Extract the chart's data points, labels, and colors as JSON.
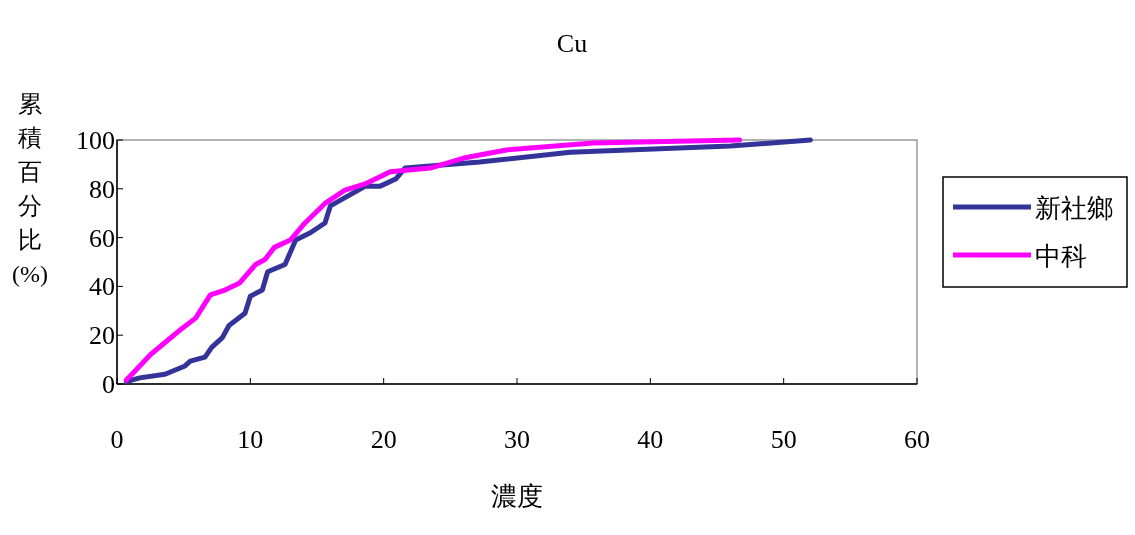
{
  "chart_data": {
    "type": "line",
    "title": "Cu",
    "xlabel": "濃度",
    "ylabel": "累積百分比(%)",
    "xlim": [
      0,
      60
    ],
    "ylim": [
      0,
      100
    ],
    "xticks": [
      0,
      10,
      20,
      30,
      40,
      50,
      60
    ],
    "yticks": [
      0,
      20,
      40,
      60,
      80,
      100
    ],
    "legend": "right",
    "grid": false,
    "series": [
      {
        "name": "新社鄉",
        "color": "#333399",
        "x": [
          0.7,
          1.7,
          3.6,
          5.1,
          5.5,
          6.6,
          7.1,
          7.9,
          8.4,
          9.6,
          10,
          10.9,
          11.3,
          12.6,
          13.4,
          14.5,
          15.6,
          16,
          17.3,
          18.6,
          19.7,
          20.9,
          21.6,
          27.2,
          34,
          46,
          52
        ],
        "values": [
          1,
          2.5,
          4,
          7.4,
          9.4,
          11,
          15,
          19,
          24,
          29,
          36,
          38.5,
          46,
          49,
          59,
          62,
          66,
          73,
          77,
          81,
          81,
          84,
          88.5,
          91,
          95,
          97.5,
          100
        ]
      },
      {
        "name": "中科",
        "color": "#ff00ff",
        "x": [
          0.7,
          1.3,
          2.5,
          3.6,
          4.7,
          5.9,
          7,
          8.1,
          9.2,
          10.4,
          11.1,
          11.8,
          13,
          14.1,
          15.6,
          17.1,
          18.6,
          20.5,
          23.5,
          26,
          29.3,
          35.7,
          46.7
        ],
        "values": [
          1.6,
          5,
          12,
          17,
          22,
          27,
          36.5,
          38.5,
          41.4,
          49,
          51,
          56,
          59,
          66,
          74,
          79.5,
          82,
          87,
          88.5,
          92.6,
          96,
          98.8,
          100
        ]
      }
    ]
  }
}
